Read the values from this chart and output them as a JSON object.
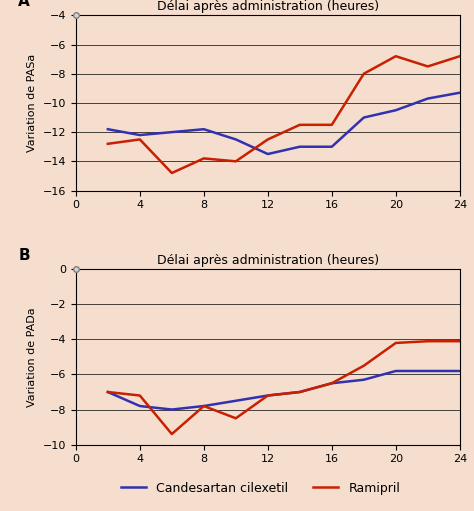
{
  "background_color": "#f5dece",
  "title": "Délai après administration (heures)",
  "x_ticks": [
    0,
    4,
    8,
    12,
    16,
    20,
    24
  ],
  "xlim": [
    0,
    24
  ],
  "panel_A": {
    "label": "A",
    "ylabel": "Variation de PASa",
    "ylim": [
      -16,
      -4
    ],
    "yticks": [
      -16,
      -14,
      -12,
      -10,
      -8,
      -6,
      -4
    ],
    "candesartan_x": [
      2,
      4,
      6,
      8,
      10,
      12,
      14,
      16,
      18,
      20,
      22,
      24
    ],
    "candesartan_y": [
      -11.8,
      -12.2,
      -12.0,
      -11.8,
      -12.5,
      -13.5,
      -13.0,
      -13.0,
      -11.0,
      -10.5,
      -9.7,
      -9.3
    ],
    "ramipril_x": [
      2,
      4,
      6,
      8,
      10,
      12,
      14,
      16,
      18,
      20,
      22,
      24
    ],
    "ramipril_y": [
      -12.8,
      -12.5,
      -14.8,
      -13.8,
      -14.0,
      -12.5,
      -11.5,
      -11.5,
      -8.0,
      -6.8,
      -7.5,
      -6.8
    ]
  },
  "panel_B": {
    "label": "B",
    "ylabel": "Variation de PADa",
    "ylim": [
      -10,
      0
    ],
    "yticks": [
      -10,
      -8,
      -6,
      -4,
      -2,
      0
    ],
    "candesartan_x": [
      2,
      4,
      6,
      8,
      10,
      12,
      14,
      16,
      18,
      20,
      22,
      24
    ],
    "candesartan_y": [
      -7.0,
      -7.8,
      -8.0,
      -7.8,
      -7.5,
      -7.2,
      -7.0,
      -6.5,
      -6.3,
      -5.8,
      -5.8,
      -5.8
    ],
    "ramipril_x": [
      2,
      4,
      6,
      8,
      10,
      12,
      14,
      16,
      18,
      20,
      22,
      24
    ],
    "ramipril_y": [
      -7.0,
      -7.2,
      -9.4,
      -7.8,
      -8.5,
      -7.2,
      -7.0,
      -6.5,
      -5.5,
      -4.2,
      -4.1,
      -4.1
    ]
  },
  "candesartan_color": "#3232b0",
  "ramipril_color": "#c82000",
  "line_width": 1.8,
  "legend_label_candesartan": "Candesartan cilexetil",
  "legend_label_ramipril": "Ramipril",
  "fontsize_title": 9,
  "fontsize_ylabel": 8,
  "fontsize_ticks": 8,
  "fontsize_label": 11,
  "fontsize_legend": 9
}
